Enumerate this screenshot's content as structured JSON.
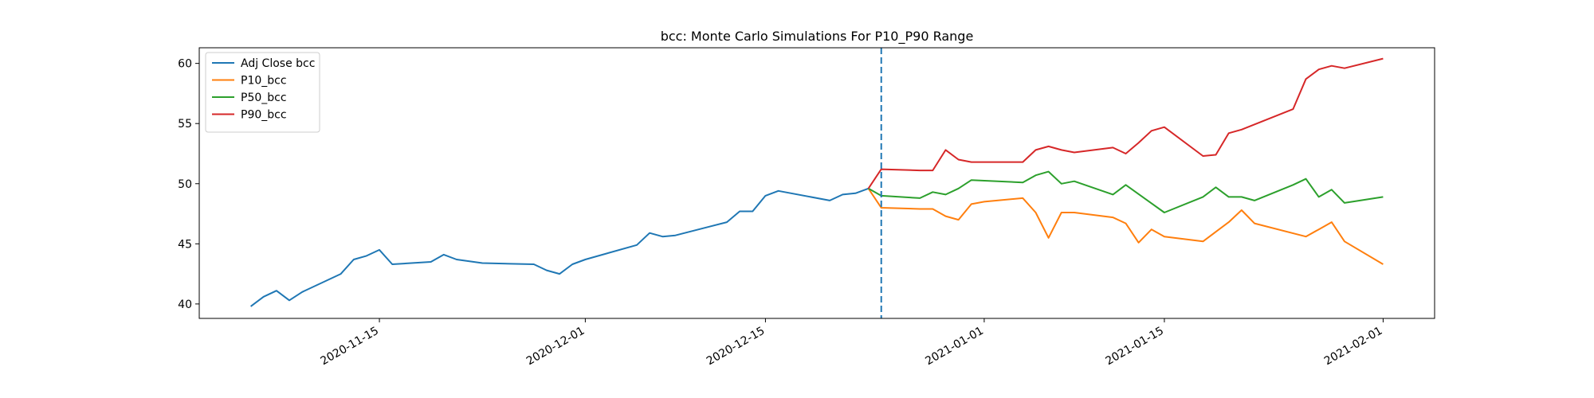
{
  "chart_data": {
    "type": "line",
    "title": "bcc: Monte Carlo Simulations For P10_P90 Range",
    "xlabel": "",
    "ylabel": "",
    "xlim": [
      "2020-11-01",
      "2021-02-05"
    ],
    "ylim": [
      38.8,
      61.3
    ],
    "yticks": [
      40,
      45,
      50,
      55,
      60
    ],
    "xticks": [
      "2020-11-15",
      "2020-12-01",
      "2020-12-15",
      "2021-01-01",
      "2021-01-15",
      "2021-02-01"
    ],
    "grid": false,
    "legend_position": "top-left",
    "vline": {
      "x": "2020-12-24",
      "style": "dashed",
      "color": "#1f77b4"
    },
    "series": [
      {
        "name": "Adj Close bcc",
        "color": "#1f77b4",
        "points": [
          [
            "2020-11-05",
            39.8
          ],
          [
            "2020-11-06",
            40.6
          ],
          [
            "2020-11-07",
            41.1
          ],
          [
            "2020-11-08",
            40.3
          ],
          [
            "2020-11-09",
            41.0
          ],
          [
            "2020-11-12",
            42.5
          ],
          [
            "2020-11-13",
            43.7
          ],
          [
            "2020-11-14",
            44.0
          ],
          [
            "2020-11-15",
            44.5
          ],
          [
            "2020-11-16",
            43.3
          ],
          [
            "2020-11-19",
            43.5
          ],
          [
            "2020-11-20",
            44.1
          ],
          [
            "2020-11-21",
            43.7
          ],
          [
            "2020-11-23",
            43.4
          ],
          [
            "2020-11-27",
            43.3
          ],
          [
            "2020-11-28",
            42.8
          ],
          [
            "2020-11-29",
            42.5
          ],
          [
            "2020-11-30",
            43.3
          ],
          [
            "2020-12-01",
            43.7
          ],
          [
            "2020-12-05",
            44.9
          ],
          [
            "2020-12-06",
            45.9
          ],
          [
            "2020-12-07",
            45.6
          ],
          [
            "2020-12-08",
            45.7
          ],
          [
            "2020-12-12",
            46.8
          ],
          [
            "2020-12-13",
            47.7
          ],
          [
            "2020-12-14",
            47.7
          ],
          [
            "2020-12-15",
            49.0
          ],
          [
            "2020-12-16",
            49.4
          ],
          [
            "2020-12-20",
            48.6
          ],
          [
            "2020-12-21",
            49.1
          ],
          [
            "2020-12-22",
            49.2
          ],
          [
            "2020-12-23",
            49.6
          ]
        ]
      },
      {
        "name": "P10_bcc",
        "color": "#ff7f0e",
        "points": [
          [
            "2020-12-23",
            49.6
          ],
          [
            "2020-12-24",
            48.0
          ],
          [
            "2020-12-27",
            47.9
          ],
          [
            "2020-12-28",
            47.9
          ],
          [
            "2020-12-29",
            47.3
          ],
          [
            "2020-12-30",
            47.0
          ],
          [
            "2020-12-31",
            48.3
          ],
          [
            "2021-01-01",
            48.5
          ],
          [
            "2021-01-04",
            48.8
          ],
          [
            "2021-01-05",
            47.6
          ],
          [
            "2021-01-06",
            45.5
          ],
          [
            "2021-01-07",
            47.6
          ],
          [
            "2021-01-08",
            47.6
          ],
          [
            "2021-01-11",
            47.2
          ],
          [
            "2021-01-12",
            46.7
          ],
          [
            "2021-01-13",
            45.1
          ],
          [
            "2021-01-14",
            46.2
          ],
          [
            "2021-01-15",
            45.6
          ],
          [
            "2021-01-18",
            45.2
          ],
          [
            "2021-01-19",
            46.0
          ],
          [
            "2021-01-20",
            46.8
          ],
          [
            "2021-01-21",
            47.8
          ],
          [
            "2021-01-22",
            46.7
          ],
          [
            "2021-01-26",
            45.6
          ],
          [
            "2021-01-27",
            46.2
          ],
          [
            "2021-01-28",
            46.8
          ],
          [
            "2021-01-29",
            45.2
          ],
          [
            "2021-02-01",
            43.3
          ]
        ]
      },
      {
        "name": "P50_bcc",
        "color": "#2ca02c",
        "points": [
          [
            "2020-12-23",
            49.6
          ],
          [
            "2020-12-24",
            49.0
          ],
          [
            "2020-12-27",
            48.8
          ],
          [
            "2020-12-28",
            49.3
          ],
          [
            "2020-12-29",
            49.1
          ],
          [
            "2020-12-30",
            49.6
          ],
          [
            "2020-12-31",
            50.3
          ],
          [
            "2021-01-04",
            50.1
          ],
          [
            "2021-01-05",
            50.7
          ],
          [
            "2021-01-06",
            51.0
          ],
          [
            "2021-01-07",
            50.0
          ],
          [
            "2021-01-08",
            50.2
          ],
          [
            "2021-01-11",
            49.1
          ],
          [
            "2021-01-12",
            49.9
          ],
          [
            "2021-01-15",
            47.6
          ],
          [
            "2021-01-18",
            48.9
          ],
          [
            "2021-01-19",
            49.7
          ],
          [
            "2021-01-20",
            48.9
          ],
          [
            "2021-01-21",
            48.9
          ],
          [
            "2021-01-22",
            48.6
          ],
          [
            "2021-01-25",
            49.9
          ],
          [
            "2021-01-26",
            50.4
          ],
          [
            "2021-01-27",
            48.9
          ],
          [
            "2021-01-28",
            49.5
          ],
          [
            "2021-01-29",
            48.4
          ],
          [
            "2021-02-01",
            48.9
          ]
        ]
      },
      {
        "name": "P90_bcc",
        "color": "#d62728",
        "points": [
          [
            "2020-12-23",
            49.6
          ],
          [
            "2020-12-24",
            51.2
          ],
          [
            "2020-12-27",
            51.1
          ],
          [
            "2020-12-28",
            51.1
          ],
          [
            "2020-12-29",
            52.8
          ],
          [
            "2020-12-30",
            52.0
          ],
          [
            "2020-12-31",
            51.8
          ],
          [
            "2021-01-04",
            51.8
          ],
          [
            "2021-01-05",
            52.8
          ],
          [
            "2021-01-06",
            53.1
          ],
          [
            "2021-01-07",
            52.8
          ],
          [
            "2021-01-08",
            52.6
          ],
          [
            "2021-01-11",
            53.0
          ],
          [
            "2021-01-12",
            52.5
          ],
          [
            "2021-01-13",
            53.4
          ],
          [
            "2021-01-14",
            54.4
          ],
          [
            "2021-01-15",
            54.7
          ],
          [
            "2021-01-18",
            52.3
          ],
          [
            "2021-01-19",
            52.4
          ],
          [
            "2021-01-20",
            54.2
          ],
          [
            "2021-01-21",
            54.5
          ],
          [
            "2021-01-25",
            56.2
          ],
          [
            "2021-01-26",
            58.7
          ],
          [
            "2021-01-27",
            59.5
          ],
          [
            "2021-01-28",
            59.8
          ],
          [
            "2021-01-29",
            59.6
          ],
          [
            "2021-02-01",
            60.4
          ]
        ]
      }
    ]
  }
}
